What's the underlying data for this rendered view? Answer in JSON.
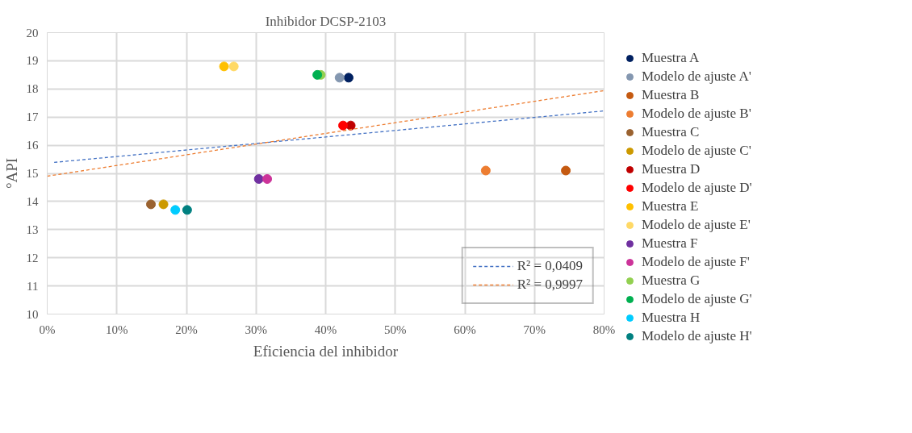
{
  "chart_data": {
    "type": "scatter",
    "title": "Inhibidor DCSP-2103",
    "xlabel": "Eficiencia del inhibidor",
    "ylabel": "°API",
    "xlim": [
      0,
      0.8
    ],
    "xticks": [
      {
        "value": 0,
        "label": "0%"
      },
      {
        "value": 0.1,
        "label": "10%"
      },
      {
        "value": 0.2,
        "label": "20%"
      },
      {
        "value": 0.3,
        "label": "30%"
      },
      {
        "value": 0.4,
        "label": "40%"
      },
      {
        "value": 0.5,
        "label": "50%"
      },
      {
        "value": 0.6,
        "label": "60%"
      },
      {
        "value": 0.7,
        "label": "70%"
      },
      {
        "value": 0.8,
        "label": "80%"
      }
    ],
    "ylim": [
      10,
      20
    ],
    "yticks": [
      10,
      11,
      12,
      13,
      14,
      15,
      16,
      17,
      18,
      19,
      20
    ],
    "grid": true,
    "legend": "right",
    "marker": "circle",
    "series": [
      {
        "name": "Muestra A",
        "color": "#002060",
        "x": [
          0.433
        ],
        "values": [
          18.4
        ]
      },
      {
        "name": "Modelo de ajuste A'",
        "color": "#8497b0",
        "x": [
          0.42
        ],
        "values": [
          18.4
        ]
      },
      {
        "name": "Muestra B",
        "color": "#c55a11",
        "x": [
          0.745
        ],
        "values": [
          15.1
        ]
      },
      {
        "name": "Modelo de ajuste B'",
        "color": "#ed7d31",
        "x": [
          0.63
        ],
        "values": [
          15.1
        ]
      },
      {
        "name": "Muestra C",
        "color": "#9a6230",
        "x": [
          0.149
        ],
        "values": [
          13.9
        ]
      },
      {
        "name": "Modelo de ajuste C'",
        "color": "#cc9900",
        "x": [
          0.167
        ],
        "values": [
          13.9
        ]
      },
      {
        "name": "Muestra D",
        "color": "#c00000",
        "x": [
          0.436
        ],
        "values": [
          16.7
        ]
      },
      {
        "name": "Modelo de ajuste D'",
        "color": "#ff0000",
        "x": [
          0.425
        ],
        "values": [
          16.7
        ]
      },
      {
        "name": "Muestra E",
        "color": "#ffc000",
        "x": [
          0.254
        ],
        "values": [
          18.8
        ]
      },
      {
        "name": "Modelo de ajuste E'",
        "color": "#ffd966",
        "x": [
          0.268
        ],
        "values": [
          18.8
        ]
      },
      {
        "name": "Muestra F",
        "color": "#7030a0",
        "x": [
          0.304
        ],
        "values": [
          14.8
        ]
      },
      {
        "name": "Modelo de ajuste F'",
        "color": "#cc3399",
        "x": [
          0.316
        ],
        "values": [
          14.8
        ]
      },
      {
        "name": "Muestra G",
        "color": "#92d050",
        "x": [
          0.393
        ],
        "values": [
          18.5
        ]
      },
      {
        "name": "Modelo de ajuste G'",
        "color": "#00b050",
        "x": [
          0.388
        ],
        "values": [
          18.5
        ]
      },
      {
        "name": "Muestra H",
        "color": "#00ccff",
        "x": [
          0.184
        ],
        "values": [
          13.7
        ]
      },
      {
        "name": "Modelo de ajuste H'",
        "color": "#008080",
        "x": [
          0.201
        ],
        "values": [
          13.7
        ]
      },
      {
        "name": "R² = 0,0409",
        "type": "line",
        "marker": "none",
        "line_style": "dashed",
        "color": "#4472c4",
        "x": [
          0.01,
          0.8
        ],
        "values": [
          15.39,
          17.22
        ]
      },
      {
        "name": "R² = 0,9997",
        "type": "line",
        "marker": "none",
        "line_style": "dashed",
        "color": "#ed7d31",
        "x": [
          0.0,
          0.8
        ],
        "values": [
          14.9,
          17.94
        ]
      }
    ]
  }
}
